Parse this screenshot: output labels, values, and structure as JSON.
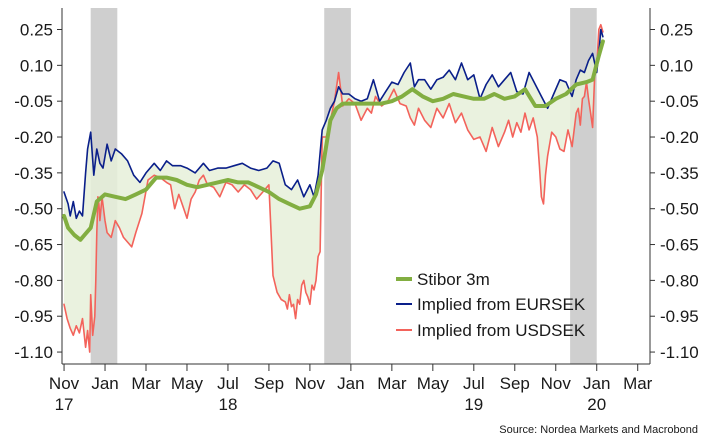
{
  "chart_data": {
    "type": "line",
    "title": "",
    "source": "Source: Nordea Markets and Macrobond",
    "y_ticks": [
      "0.25",
      "0.10",
      "-0.05",
      "-0.20",
      "-0.35",
      "-0.50",
      "-0.65",
      "-0.80",
      "-0.95",
      "-1.10"
    ],
    "y_tick_values": [
      0.25,
      0.1,
      -0.05,
      -0.2,
      -0.35,
      -0.5,
      -0.65,
      -0.8,
      -0.95,
      -1.1
    ],
    "ylim": [
      -1.15,
      0.34
    ],
    "x_month_labels": [
      "Nov",
      "Jan",
      "Mar",
      "May",
      "Jul",
      "Sep",
      "Nov",
      "Jan",
      "Mar",
      "May",
      "Jul",
      "Sep",
      "Nov",
      "Jan",
      "Mar"
    ],
    "x_month_values": [
      0,
      2,
      4,
      6,
      8,
      10,
      12,
      14,
      16,
      18,
      20,
      22,
      24,
      26,
      28
    ],
    "x_year_labels": [
      "17",
      "18",
      "19",
      "20"
    ],
    "x_year_values": [
      0,
      8,
      20,
      26
    ],
    "xlim": [
      -0.1,
      28.6
    ],
    "shaded_periods": [
      [
        1.3,
        2.6
      ],
      [
        12.7,
        14.0
      ],
      [
        24.7,
        26.0
      ]
    ],
    "legend": [
      "Stibor 3m",
      "Implied from EURSEK",
      "Implied from USDSEK"
    ],
    "series": [
      {
        "name": "Stibor 3m",
        "color": "#82ae41",
        "x": [
          0,
          0.2,
          0.5,
          0.8,
          1.0,
          1.3,
          1.6,
          2.0,
          2.5,
          3.0,
          3.5,
          4.0,
          4.5,
          5.0,
          5.5,
          6.0,
          6.5,
          7.0,
          7.5,
          8.0,
          8.5,
          9.0,
          9.5,
          10.0,
          10.5,
          11.0,
          11.5,
          12.0,
          12.3,
          12.6,
          13.0,
          13.3,
          13.6,
          14.0,
          14.5,
          15.0,
          15.5,
          16.0,
          16.5,
          17.0,
          17.5,
          18.0,
          18.5,
          19.0,
          19.5,
          20.0,
          20.5,
          21.0,
          21.5,
          22.0,
          22.5,
          23.0,
          23.5,
          24.0,
          24.5,
          25.0,
          25.5,
          25.8,
          26.1,
          26.3
        ],
        "values": [
          -0.53,
          -0.58,
          -0.61,
          -0.63,
          -0.61,
          -0.58,
          -0.47,
          -0.44,
          -0.45,
          -0.46,
          -0.44,
          -0.42,
          -0.37,
          -0.37,
          -0.38,
          -0.4,
          -0.41,
          -0.4,
          -0.39,
          -0.38,
          -0.39,
          -0.39,
          -0.41,
          -0.43,
          -0.46,
          -0.48,
          -0.5,
          -0.49,
          -0.44,
          -0.34,
          -0.13,
          -0.08,
          -0.06,
          -0.06,
          -0.06,
          -0.06,
          -0.06,
          -0.05,
          -0.03,
          0.0,
          -0.03,
          -0.05,
          -0.04,
          -0.02,
          -0.03,
          -0.04,
          -0.04,
          -0.02,
          -0.04,
          -0.03,
          0.0,
          -0.07,
          -0.07,
          -0.04,
          -0.02,
          0.02,
          0.03,
          0.04,
          0.14,
          0.2
        ]
      },
      {
        "name": "Implied from EURSEK",
        "color": "#0a1f8a",
        "x": [
          0,
          0.2,
          0.3,
          0.45,
          0.6,
          0.75,
          0.9,
          1.05,
          1.15,
          1.3,
          1.45,
          1.6,
          1.75,
          1.9,
          2.1,
          2.3,
          2.5,
          2.8,
          3.1,
          3.4,
          3.7,
          4.0,
          4.4,
          4.7,
          5.0,
          5.3,
          5.7,
          6.0,
          6.4,
          6.8,
          7.1,
          7.5,
          7.9,
          8.3,
          8.7,
          9.1,
          9.5,
          9.9,
          10.2,
          10.5,
          10.8,
          11.1,
          11.4,
          11.7,
          12.0,
          12.2,
          12.4,
          12.6,
          12.8,
          13.0,
          13.2,
          13.4,
          13.6,
          13.9,
          14.2,
          14.5,
          14.8,
          15.1,
          15.4,
          15.7,
          16.0,
          16.3,
          16.6,
          16.9,
          17.1,
          17.3,
          17.6,
          17.9,
          18.2,
          18.5,
          18.8,
          19.1,
          19.4,
          19.7,
          20.0,
          20.3,
          20.6,
          20.9,
          21.2,
          21.5,
          21.8,
          22.1,
          22.4,
          22.7,
          23.0,
          23.3,
          23.6,
          23.9,
          24.2,
          24.5,
          24.8,
          25.0,
          25.2,
          25.4,
          25.6,
          25.8,
          26.0,
          26.1,
          26.2,
          26.3
        ],
        "values": [
          -0.43,
          -0.48,
          -0.53,
          -0.47,
          -0.54,
          -0.51,
          -0.53,
          -0.35,
          -0.25,
          -0.18,
          -0.36,
          -0.25,
          -0.31,
          -0.33,
          -0.23,
          -0.3,
          -0.25,
          -0.27,
          -0.3,
          -0.36,
          -0.39,
          -0.35,
          -0.31,
          -0.34,
          -0.3,
          -0.32,
          -0.32,
          -0.33,
          -0.35,
          -0.31,
          -0.34,
          -0.33,
          -0.33,
          -0.32,
          -0.31,
          -0.33,
          -0.34,
          -0.33,
          -0.3,
          -0.31,
          -0.4,
          -0.42,
          -0.38,
          -0.45,
          -0.4,
          -0.45,
          -0.36,
          -0.17,
          -0.13,
          -0.08,
          -0.05,
          0.01,
          -0.02,
          -0.02,
          -0.04,
          -0.05,
          -0.04,
          0.04,
          -0.05,
          -0.01,
          0.03,
          0.02,
          0.07,
          0.11,
          0.01,
          0.04,
          0.04,
          0.0,
          0.04,
          0.05,
          0.08,
          0.04,
          0.11,
          0.04,
          0.06,
          -0.04,
          0.02,
          0.06,
          0.01,
          0.04,
          0.07,
          -0.01,
          -0.02,
          0.07,
          0.02,
          -0.03,
          -0.08,
          -0.02,
          0.04,
          0.03,
          -0.03,
          0.04,
          0.08,
          0.07,
          0.12,
          0.15,
          0.07,
          0.15,
          0.25,
          0.22
        ]
      },
      {
        "name": "Implied from USDSEK",
        "color": "#f3635b",
        "x": [
          0,
          0.15,
          0.3,
          0.45,
          0.6,
          0.75,
          0.9,
          1.05,
          1.15,
          1.25,
          1.3,
          1.4,
          1.5,
          1.55,
          1.6,
          1.65,
          1.7,
          1.75,
          1.85,
          2.0,
          2.1,
          2.3,
          2.5,
          2.7,
          2.9,
          3.1,
          3.3,
          3.5,
          3.8,
          4.1,
          4.4,
          4.7,
          5.0,
          5.2,
          5.4,
          5.6,
          5.8,
          6.0,
          6.2,
          6.4,
          6.6,
          6.8,
          7.0,
          7.3,
          7.6,
          7.9,
          8.2,
          8.5,
          8.8,
          9.1,
          9.4,
          9.7,
          10.0,
          10.2,
          10.4,
          10.6,
          10.8,
          10.9,
          11.0,
          11.1,
          11.2,
          11.3,
          11.4,
          11.5,
          11.6,
          11.7,
          11.8,
          11.9,
          12.0,
          12.1,
          12.2,
          12.3,
          12.4,
          12.5,
          12.6,
          12.8,
          13.0,
          13.2,
          13.4,
          13.6,
          13.9,
          14.2,
          14.5,
          14.8,
          15.0,
          15.2,
          15.5,
          15.8,
          16.1,
          16.4,
          16.7,
          16.9,
          17.1,
          17.3,
          17.6,
          17.9,
          18.2,
          18.5,
          18.8,
          19.1,
          19.4,
          19.7,
          20.0,
          20.3,
          20.6,
          20.9,
          21.2,
          21.5,
          21.7,
          21.9,
          22.1,
          22.3,
          22.5,
          22.7,
          22.9,
          23.1,
          23.2,
          23.3,
          23.4,
          23.5,
          23.6,
          23.8,
          24.0,
          24.2,
          24.4,
          24.6,
          24.8,
          25.0,
          25.1,
          25.2,
          25.3,
          25.4,
          25.5,
          25.6,
          25.7,
          25.8,
          25.9,
          26.0,
          26.1,
          26.2,
          26.3
        ],
        "values": [
          -0.9,
          -0.96,
          -1.0,
          -1.03,
          -0.99,
          -1.02,
          -0.96,
          -1.08,
          -1.01,
          -1.1,
          -0.86,
          -1.03,
          -0.95,
          -0.8,
          -0.6,
          -0.45,
          -0.48,
          -0.55,
          -0.45,
          -0.55,
          -0.6,
          -0.62,
          -0.55,
          -0.58,
          -0.62,
          -0.64,
          -0.66,
          -0.6,
          -0.52,
          -0.38,
          -0.36,
          -0.37,
          -0.39,
          -0.4,
          -0.5,
          -0.44,
          -0.49,
          -0.54,
          -0.46,
          -0.43,
          -0.38,
          -0.36,
          -0.4,
          -0.41,
          -0.45,
          -0.39,
          -0.4,
          -0.43,
          -0.4,
          -0.42,
          -0.46,
          -0.43,
          -0.4,
          -0.78,
          -0.85,
          -0.88,
          -0.89,
          -0.92,
          -0.86,
          -0.91,
          -0.9,
          -0.96,
          -0.88,
          -0.9,
          -0.82,
          -0.8,
          -0.85,
          -0.87,
          -0.9,
          -0.82,
          -0.84,
          -0.8,
          -0.7,
          -0.68,
          -0.2,
          -0.2,
          -0.13,
          -0.05,
          0.07,
          -0.07,
          -0.04,
          -0.06,
          -0.13,
          -0.08,
          -0.1,
          -0.03,
          -0.07,
          -0.05,
          0.0,
          -0.06,
          -0.07,
          -0.12,
          -0.15,
          -0.08,
          -0.13,
          -0.16,
          -0.08,
          -0.12,
          -0.06,
          -0.14,
          -0.1,
          -0.17,
          -0.21,
          -0.2,
          -0.26,
          -0.16,
          -0.24,
          -0.18,
          -0.13,
          -0.2,
          -0.14,
          -0.18,
          -0.1,
          -0.17,
          -0.12,
          -0.2,
          -0.32,
          -0.45,
          -0.48,
          -0.36,
          -0.28,
          -0.18,
          -0.2,
          -0.25,
          -0.26,
          -0.17,
          -0.24,
          -0.1,
          -0.08,
          -0.15,
          -0.04,
          -0.03,
          0.03,
          -0.04,
          -0.1,
          -0.16,
          0.06,
          0.09,
          0.25,
          0.27,
          0.24
        ]
      }
    ]
  }
}
